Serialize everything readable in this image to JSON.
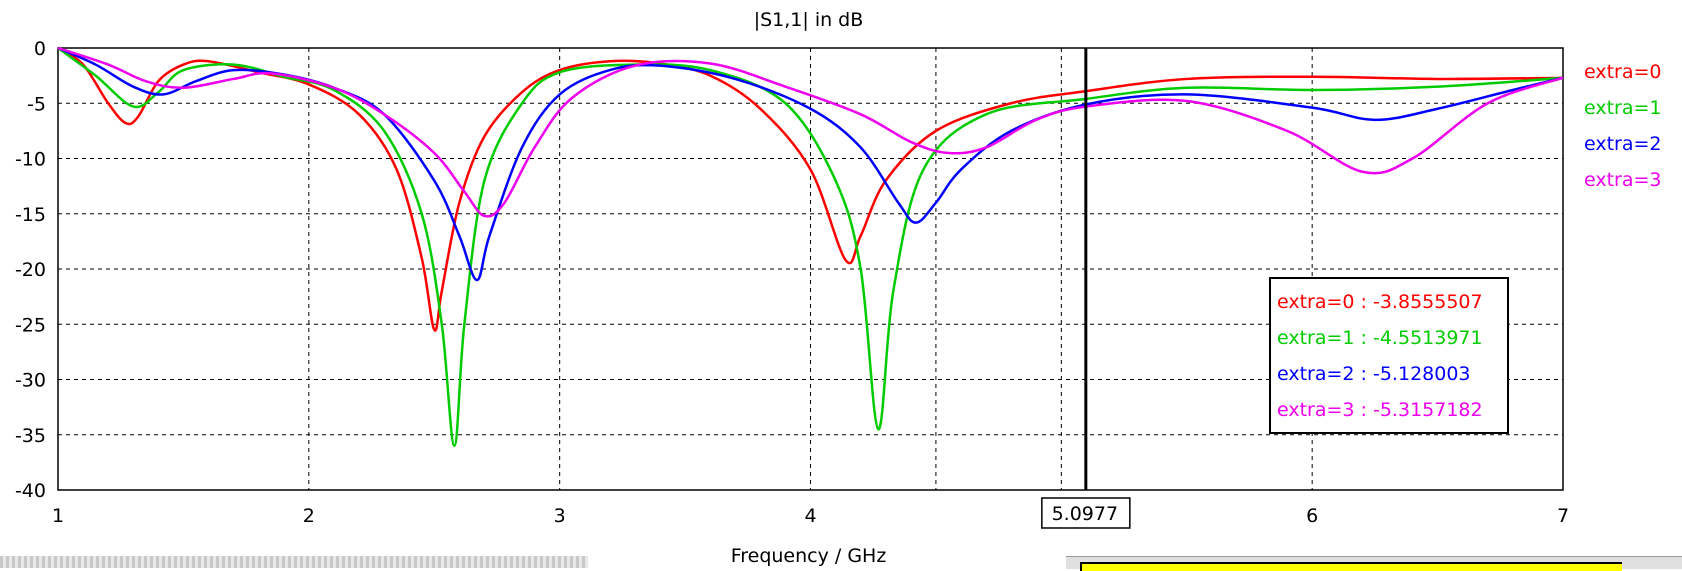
{
  "chart_data": {
    "type": "line",
    "title": "|S1,1| in dB",
    "xlabel": "Frequency / GHz",
    "ylabel": "",
    "xlim": [
      1,
      7
    ],
    "ylim": [
      -40,
      0
    ],
    "xticks": [
      1,
      2,
      3,
      4,
      5,
      6,
      7
    ],
    "yticks": [
      0,
      -5,
      -10,
      -15,
      -20,
      -25,
      -30,
      -35,
      -40
    ],
    "grid": true,
    "legend_position": "right",
    "marker": {
      "x": 5.0977,
      "label": "5.0977"
    },
    "readout_box": [
      {
        "label": "extra=0 : -3.8555507"
      },
      {
        "label": "extra=1 : -4.5513971"
      },
      {
        "label": "extra=2 : -5.128003"
      },
      {
        "label": "extra=3 : -5.3157182"
      }
    ],
    "series": [
      {
        "name": "extra=0",
        "color": "#ff0000",
        "points": [
          [
            1,
            0
          ],
          [
            1.1,
            -1.5
          ],
          [
            1.2,
            -5
          ],
          [
            1.27,
            -6.8
          ],
          [
            1.32,
            -6.2
          ],
          [
            1.4,
            -3
          ],
          [
            1.5,
            -1.5
          ],
          [
            1.6,
            -1.2
          ],
          [
            1.8,
            -2.2
          ],
          [
            2.0,
            -3.3
          ],
          [
            2.2,
            -6
          ],
          [
            2.35,
            -11
          ],
          [
            2.45,
            -19
          ],
          [
            2.5,
            -25.5
          ],
          [
            2.53,
            -22
          ],
          [
            2.6,
            -14
          ],
          [
            2.7,
            -8
          ],
          [
            2.85,
            -4
          ],
          [
            3.0,
            -2
          ],
          [
            3.2,
            -1.2
          ],
          [
            3.4,
            -1.4
          ],
          [
            3.6,
            -2.5
          ],
          [
            3.8,
            -5.5
          ],
          [
            4.0,
            -11
          ],
          [
            4.14,
            -19.2
          ],
          [
            4.2,
            -17
          ],
          [
            4.3,
            -12
          ],
          [
            4.5,
            -7.5
          ],
          [
            4.8,
            -5
          ],
          [
            5.1,
            -3.9
          ],
          [
            5.5,
            -2.8
          ],
          [
            6.0,
            -2.6
          ],
          [
            6.5,
            -2.8
          ],
          [
            7.0,
            -2.7
          ]
        ]
      },
      {
        "name": "extra=1",
        "color": "#00cc00",
        "points": [
          [
            1,
            0
          ],
          [
            1.15,
            -2.5
          ],
          [
            1.3,
            -5.3
          ],
          [
            1.4,
            -4
          ],
          [
            1.5,
            -2
          ],
          [
            1.7,
            -1.5
          ],
          [
            1.9,
            -2.6
          ],
          [
            2.1,
            -3.8
          ],
          [
            2.3,
            -7.5
          ],
          [
            2.45,
            -15
          ],
          [
            2.53,
            -25
          ],
          [
            2.58,
            -36
          ],
          [
            2.62,
            -25
          ],
          [
            2.7,
            -12
          ],
          [
            2.85,
            -5
          ],
          [
            3.0,
            -2.2
          ],
          [
            3.3,
            -1.5
          ],
          [
            3.6,
            -2
          ],
          [
            3.9,
            -5
          ],
          [
            4.1,
            -12
          ],
          [
            4.2,
            -20
          ],
          [
            4.27,
            -34.5
          ],
          [
            4.33,
            -22
          ],
          [
            4.45,
            -11
          ],
          [
            4.7,
            -6
          ],
          [
            5.1,
            -4.6
          ],
          [
            5.5,
            -3.6
          ],
          [
            6.0,
            -3.8
          ],
          [
            6.5,
            -3.5
          ],
          [
            7.0,
            -2.7
          ]
        ]
      },
      {
        "name": "extra=2",
        "color": "#0000ff",
        "points": [
          [
            1,
            0
          ],
          [
            1.15,
            -1.5
          ],
          [
            1.3,
            -3.5
          ],
          [
            1.42,
            -4.2
          ],
          [
            1.55,
            -3
          ],
          [
            1.7,
            -2
          ],
          [
            1.9,
            -2.4
          ],
          [
            2.1,
            -3.6
          ],
          [
            2.3,
            -6
          ],
          [
            2.5,
            -12
          ],
          [
            2.6,
            -17
          ],
          [
            2.67,
            -21
          ],
          [
            2.72,
            -17
          ],
          [
            2.85,
            -9
          ],
          [
            3.0,
            -4.2
          ],
          [
            3.2,
            -2
          ],
          [
            3.4,
            -1.6
          ],
          [
            3.7,
            -2.8
          ],
          [
            4.0,
            -5.5
          ],
          [
            4.2,
            -9
          ],
          [
            4.35,
            -14
          ],
          [
            4.42,
            -15.8
          ],
          [
            4.5,
            -14
          ],
          [
            4.6,
            -11
          ],
          [
            4.8,
            -7.5
          ],
          [
            5.1,
            -5.1
          ],
          [
            5.5,
            -4.2
          ],
          [
            6.0,
            -5.4
          ],
          [
            6.25,
            -6.5
          ],
          [
            6.5,
            -5.5
          ],
          [
            6.8,
            -3.8
          ],
          [
            7.0,
            -2.7
          ]
        ]
      },
      {
        "name": "extra=3",
        "color": "#ee00ee",
        "points": [
          [
            1,
            0
          ],
          [
            1.2,
            -1.5
          ],
          [
            1.35,
            -3
          ],
          [
            1.5,
            -3.6
          ],
          [
            1.7,
            -2.8
          ],
          [
            1.85,
            -2.3
          ],
          [
            2.1,
            -3.6
          ],
          [
            2.3,
            -6
          ],
          [
            2.5,
            -9.5
          ],
          [
            2.62,
            -13
          ],
          [
            2.7,
            -15.2
          ],
          [
            2.78,
            -14
          ],
          [
            2.9,
            -9
          ],
          [
            3.05,
            -4.5
          ],
          [
            3.3,
            -1.6
          ],
          [
            3.6,
            -1.4
          ],
          [
            3.9,
            -3.5
          ],
          [
            4.2,
            -6
          ],
          [
            4.4,
            -8.5
          ],
          [
            4.55,
            -9.5
          ],
          [
            4.7,
            -9
          ],
          [
            4.9,
            -6.5
          ],
          [
            5.1,
            -5.3
          ],
          [
            5.5,
            -4.8
          ],
          [
            5.9,
            -7.5
          ],
          [
            6.2,
            -11.2
          ],
          [
            6.4,
            -10
          ],
          [
            6.7,
            -5
          ],
          [
            7.0,
            -2.7
          ]
        ]
      }
    ]
  }
}
